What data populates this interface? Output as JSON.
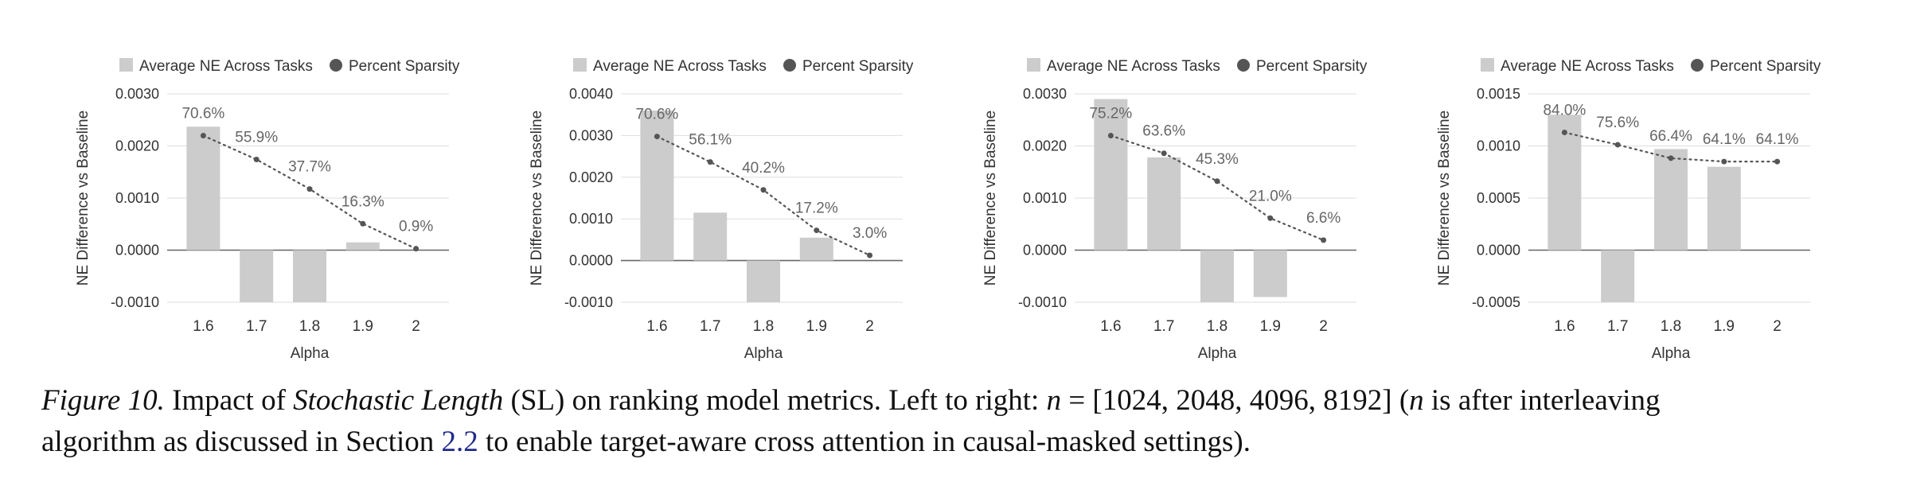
{
  "charts_common": {
    "legend_bar_label": "Average NE Across Tasks",
    "legend_dot_label": "Percent Sparsity",
    "xlabel": "Alpha",
    "ylabel": "NE Difference vs Baseline",
    "bar_color": "#cccccc",
    "line_color": "#555555",
    "grid_color": "#dddddd",
    "text_color": "#333333"
  },
  "chart_data": [
    {
      "type": "bar",
      "title": "",
      "categories": [
        "1.6",
        "1.7",
        "1.8",
        "1.9",
        "2"
      ],
      "series": [
        {
          "name": "Average NE Across Tasks",
          "values": [
            0.00237,
            -0.0012,
            -0.0011,
            0.00015,
            0.0
          ]
        },
        {
          "name": "Percent Sparsity",
          "type": "line",
          "values": [
            70.6,
            55.9,
            37.7,
            16.3,
            0.9
          ],
          "labels": [
            "70.6%",
            "55.9%",
            "37.7%",
            "16.3%",
            "0.9%"
          ]
        }
      ],
      "yticks": [
        "0.0030",
        "0.0020",
        "0.0010",
        "0.0000",
        "-0.0010"
      ],
      "ylim": [
        -0.001,
        0.003
      ]
    },
    {
      "type": "bar",
      "title": "",
      "categories": [
        "1.6",
        "1.7",
        "1.8",
        "1.9",
        "2"
      ],
      "series": [
        {
          "name": "Average NE Across Tasks",
          "values": [
            0.0036,
            0.00115,
            -0.0012,
            0.00055,
            0.0
          ]
        },
        {
          "name": "Percent Sparsity",
          "type": "line",
          "values": [
            70.6,
            56.1,
            40.2,
            17.2,
            3.0
          ],
          "labels": [
            "70.6%",
            "56.1%",
            "40.2%",
            "17.2%",
            "3.0%"
          ]
        }
      ],
      "yticks": [
        "0.0040",
        "0.0030",
        "0.0020",
        "0.0010",
        "0.0000",
        "-0.0010"
      ],
      "ylim": [
        -0.001,
        0.004
      ]
    },
    {
      "type": "bar",
      "title": "",
      "categories": [
        "1.6",
        "1.7",
        "1.8",
        "1.9",
        "2"
      ],
      "series": [
        {
          "name": "Average NE Across Tasks",
          "values": [
            0.0029,
            0.00178,
            -0.0012,
            -0.0009,
            0.0
          ]
        },
        {
          "name": "Percent Sparsity",
          "type": "line",
          "values": [
            75.2,
            63.6,
            45.3,
            21.0,
            6.6
          ],
          "labels": [
            "75.2%",
            "63.6%",
            "45.3%",
            "21.0%",
            "6.6%"
          ]
        }
      ],
      "yticks": [
        "0.0030",
        "0.0020",
        "0.0010",
        "0.0000",
        "-0.0010"
      ],
      "ylim": [
        -0.001,
        0.003
      ]
    },
    {
      "type": "bar",
      "title": "",
      "categories": [
        "1.6",
        "1.7",
        "1.8",
        "1.9",
        "2"
      ],
      "series": [
        {
          "name": "Average NE Across Tasks",
          "values": [
            0.0013,
            -0.0006,
            0.00097,
            0.0008,
            0.0
          ]
        },
        {
          "name": "Percent Sparsity",
          "type": "line",
          "values": [
            84.0,
            75.6,
            66.4,
            64.1,
            64.1
          ],
          "labels": [
            "84.0%",
            "75.6%",
            "66.4%",
            "64.1%",
            "64.1%"
          ]
        }
      ],
      "yticks": [
        "0.0015",
        "0.0010",
        "0.0005",
        "0.0000",
        "-0.0005"
      ],
      "ylim": [
        -0.0005,
        0.0015
      ]
    }
  ],
  "caption": {
    "label": "Figure 10.",
    "text1": " Impact of ",
    "em": "Stochastic Length",
    "text2": " (SL) on ranking model metrics. Left to right: ",
    "math1": "n",
    "math_eq": " = [1024, 2048, 4096, 8192] (",
    "math2": "n",
    "text3": " is after interleaving",
    "text4": "algorithm as discussed in Section ",
    "ref": "2.2",
    "text5": " to enable target-aware cross attention in causal-masked settings)."
  }
}
